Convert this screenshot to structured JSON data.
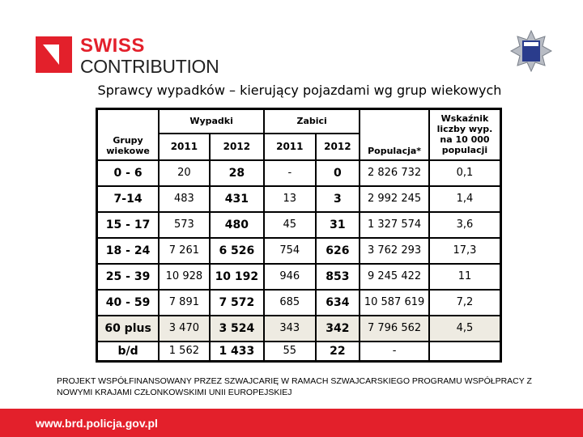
{
  "logo": {
    "line1": "SWISS",
    "line2": "CONTRIBUTION",
    "color": "#e3202b"
  },
  "police_badge": {
    "text": "POLICJA"
  },
  "title": "Sprawcy wypadków – kierujący pojazdami wg grup wiekowych",
  "table": {
    "headers": {
      "group": "Grupy wiekowe",
      "accidents": "Wypadki",
      "killed": "Zabici",
      "y2011": "2011",
      "y2012": "2012",
      "population": "Populacja*",
      "index": "Wskaźnik liczby wyp. na 10 000 populacji"
    },
    "rows": [
      {
        "group": "0 - 6",
        "a2011": "20",
        "a2012": "28",
        "k2011": "-",
        "k2012": "0",
        "population": "2 826 732",
        "index": "0,1"
      },
      {
        "group": "7-14",
        "a2011": "483",
        "a2012": "431",
        "k2011": "13",
        "k2012": "3",
        "population": "2 992 245",
        "index": "1,4"
      },
      {
        "group": "15 - 17",
        "a2011": "573",
        "a2012": "480",
        "k2011": "45",
        "k2012": "31",
        "population": "1 327 574",
        "index": "3,6"
      },
      {
        "group": "18 - 24",
        "a2011": "7 261",
        "a2012": "6 526",
        "k2011": "754",
        "k2012": "626",
        "population": "3 762 293",
        "index": "17,3"
      },
      {
        "group": "25 - 39",
        "a2011": "10 928",
        "a2012": "10 192",
        "k2011": "946",
        "k2012": "853",
        "population": "9 245 422",
        "index": "11"
      },
      {
        "group": "40 - 59",
        "a2011": "7 891",
        "a2012": "7 572",
        "k2011": "685",
        "k2012": "634",
        "population": "10 587 619",
        "index": "7,2"
      },
      {
        "group": "60  plus",
        "a2011": "3 470",
        "a2012": "3 524",
        "k2011": "343",
        "k2012": "342",
        "population": "7 796 562",
        "index": "4,5"
      },
      {
        "group": "b/d",
        "a2011": "1 562",
        "a2012": "1 433",
        "k2011": "55",
        "k2012": "22",
        "population": "-",
        "index": ""
      }
    ]
  },
  "note": "PROJEKT WSPÓŁFINANSOWANY PRZEZ SZWAJCARIĘ  W RAMACH SZWAJCARSKIEGO PROGRAMU WSPÓŁPRACY  Z NOWYMI KRAJAMI CZŁONKOWSKIMI UNII EUROPEJSKIEJ",
  "footer": {
    "url": "www.brd.policja.gov.pl",
    "color": "#e3202b"
  }
}
